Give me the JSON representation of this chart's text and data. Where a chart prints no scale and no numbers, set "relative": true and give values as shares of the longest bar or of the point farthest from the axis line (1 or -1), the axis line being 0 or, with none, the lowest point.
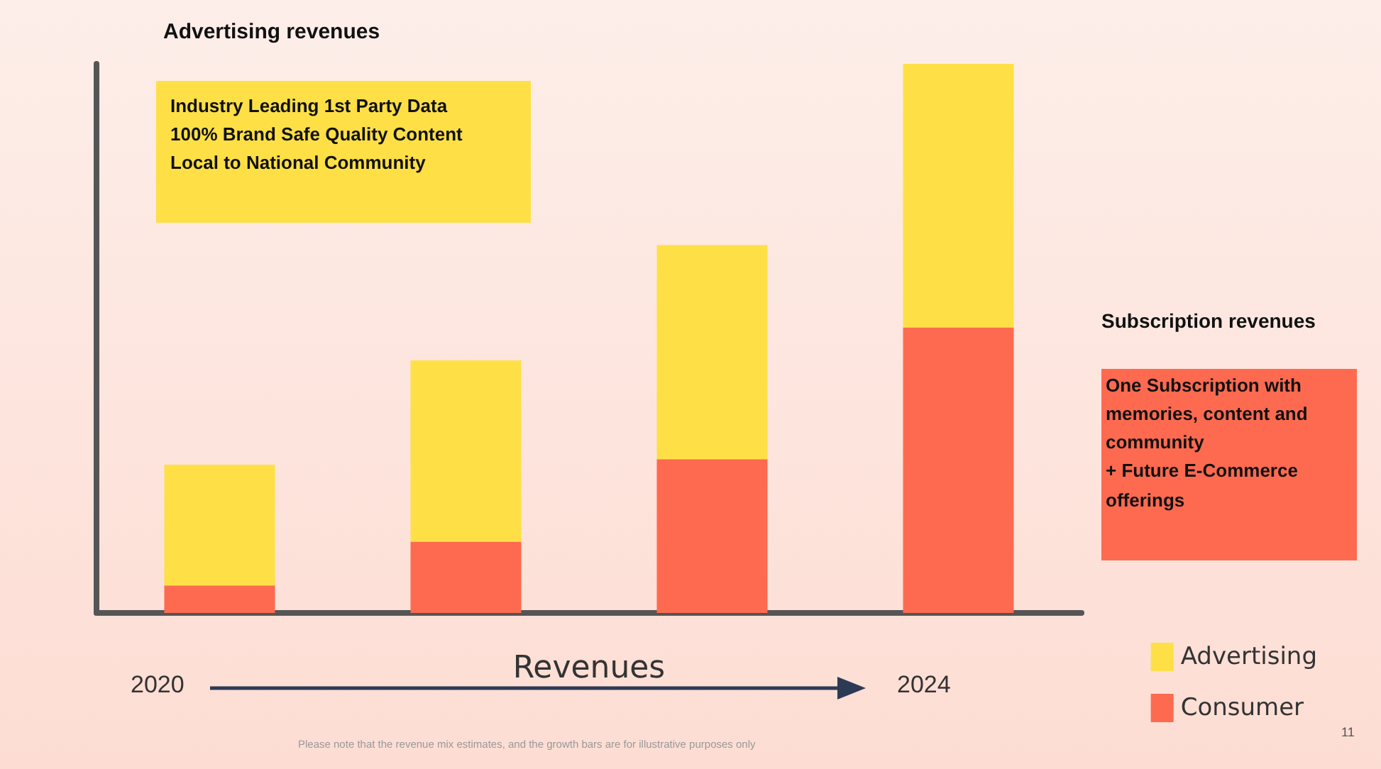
{
  "chart_data": {
    "type": "bar",
    "stacked": true,
    "relative": true,
    "xlabel": "Revenues",
    "categories": [
      null,
      null,
      null,
      null
    ],
    "series": [
      {
        "name": "Consumer",
        "color": "#fe6a50",
        "values": [
          0.05,
          0.13,
          0.28,
          0.52
        ]
      },
      {
        "name": "Advertising",
        "color": "#fee046",
        "values": [
          0.22,
          0.33,
          0.39,
          0.48
        ]
      }
    ],
    "legend": "bottom right",
    "grid": false,
    "annotations": [
      "Advertising revenues",
      "Industry Leading 1st Party Data\n100% Brand Safe Quality Content\nLocal to National Community",
      "Subscription revenues",
      "One Subscription with memories, content and community\n+ Future E-Commerce offerings",
      "2020",
      "2024",
      "Please note that the revenue mix estimates, and the growth bars are for illustrative purposes only",
      "11"
    ]
  }
}
